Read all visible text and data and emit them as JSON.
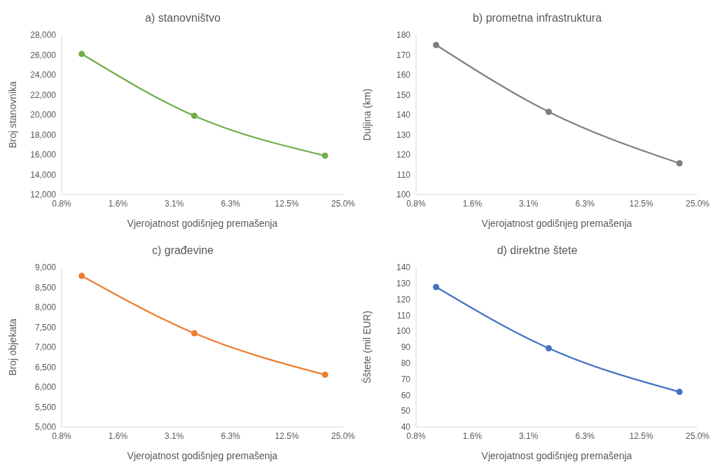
{
  "chart_data": [
    {
      "type": "line",
      "title": "a) stanovništvo",
      "xlabel": "Vjerojatnost godišnjeg premašenja",
      "ylabel": "Broj stanovnika",
      "x": [
        1,
        4,
        20
      ],
      "log": "x",
      "marker": "circle",
      "series": [
        {
          "color": "#70ad47",
          "values": [
            26100,
            19900,
            15900
          ]
        }
      ],
      "xlim": [
        0.78125,
        25
      ],
      "xticks": [
        {
          "value": 0.78125,
          "label": "0.8%"
        },
        {
          "value": 1.5625,
          "label": "1.6%"
        },
        {
          "value": 3.125,
          "label": "3.1%"
        },
        {
          "value": 6.25,
          "label": "6.3%"
        },
        {
          "value": 12.5,
          "label": "12.5%"
        },
        {
          "value": 25,
          "label": "25.0%"
        }
      ],
      "ylim": [
        12000,
        28000
      ],
      "yticks": [
        {
          "value": 12000,
          "label": "12,000"
        },
        {
          "value": 14000,
          "label": "14,000"
        },
        {
          "value": 16000,
          "label": "16,000"
        },
        {
          "value": 18000,
          "label": "18,000"
        },
        {
          "value": 20000,
          "label": "20,000"
        },
        {
          "value": 22000,
          "label": "22,000"
        },
        {
          "value": 24000,
          "label": "24,000"
        },
        {
          "value": 26000,
          "label": "26,000"
        },
        {
          "value": 28000,
          "label": "28,000"
        }
      ]
    },
    {
      "type": "line",
      "title": "b) prometna infrastruktura",
      "xlabel": "Vjerojatnost godišnjeg premašenja",
      "ylabel": "Duljina (km)",
      "x": [
        1,
        4,
        20
      ],
      "log": "x",
      "marker": "circle",
      "series": [
        {
          "color": "#7f7f7f",
          "values": [
            175,
            141.5,
            115.7
          ]
        }
      ],
      "xlim": [
        0.78125,
        25
      ],
      "xticks": [
        {
          "value": 0.78125,
          "label": "0.8%"
        },
        {
          "value": 1.5625,
          "label": "1.6%"
        },
        {
          "value": 3.125,
          "label": "3.1%"
        },
        {
          "value": 6.25,
          "label": "6.3%"
        },
        {
          "value": 12.5,
          "label": "12.5%"
        },
        {
          "value": 25,
          "label": "25.0%"
        }
      ],
      "ylim": [
        100,
        180
      ],
      "yticks": [
        100,
        110,
        120,
        130,
        140,
        150,
        160,
        170,
        180
      ]
    },
    {
      "type": "line",
      "title": "c) građevine",
      "xlabel": "Vjerojatnost godišnjeg premašenja",
      "ylabel": "Broj objekata",
      "x": [
        1,
        4,
        20
      ],
      "log": "x",
      "marker": "circle",
      "series": [
        {
          "color": "#ed7d31",
          "values": [
            8790,
            7350,
            6310
          ]
        }
      ],
      "xlim": [
        0.78125,
        25
      ],
      "xticks": [
        {
          "value": 0.78125,
          "label": "0.8%"
        },
        {
          "value": 1.5625,
          "label": "1.6%"
        },
        {
          "value": 3.125,
          "label": "3.1%"
        },
        {
          "value": 6.25,
          "label": "6.3%"
        },
        {
          "value": 12.5,
          "label": "12.5%"
        },
        {
          "value": 25,
          "label": "25.0%"
        }
      ],
      "ylim": [
        5000,
        9000
      ],
      "yticks": [
        {
          "value": 5000,
          "label": "5,000"
        },
        {
          "value": 5500,
          "label": "5,500"
        },
        {
          "value": 6000,
          "label": "6,000"
        },
        {
          "value": 6500,
          "label": "6,500"
        },
        {
          "value": 7000,
          "label": "7,000"
        },
        {
          "value": 7500,
          "label": "7,500"
        },
        {
          "value": 8000,
          "label": "8,000"
        },
        {
          "value": 8500,
          "label": "8,500"
        },
        {
          "value": 9000,
          "label": "9,000"
        }
      ]
    },
    {
      "type": "line",
      "title": "d) direktne štete",
      "xlabel": "Vjerojatnost godišnjeg premašenja",
      "ylabel": "Šštete (mil EUR)",
      "x": [
        1,
        4,
        20
      ],
      "log": "x",
      "marker": "circle",
      "series": [
        {
          "color": "#4472c4",
          "values": [
            127.7,
            89.3,
            62
          ]
        }
      ],
      "xlim": [
        0.78125,
        25
      ],
      "xticks": [
        {
          "value": 0.78125,
          "label": "0.8%"
        },
        {
          "value": 1.5625,
          "label": "1.6%"
        },
        {
          "value": 3.125,
          "label": "3.1%"
        },
        {
          "value": 6.25,
          "label": "6.3%"
        },
        {
          "value": 12.5,
          "label": "12.5%"
        },
        {
          "value": 25,
          "label": "25.0%"
        }
      ],
      "ylim": [
        40,
        140
      ],
      "yticks": [
        40,
        50,
        60,
        70,
        80,
        90,
        100,
        110,
        120,
        130,
        140
      ]
    }
  ]
}
